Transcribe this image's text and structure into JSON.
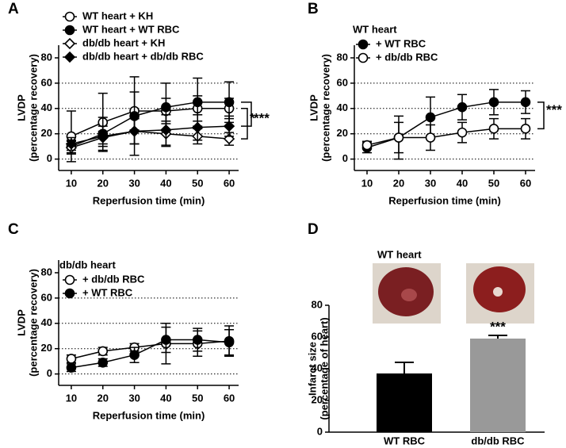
{
  "chart_data": [
    {
      "type": "line",
      "label": "A",
      "xlabel": "Reperfusion time (min)",
      "ylabel": [
        "LVDP",
        "(percentage recovery)"
      ],
      "x": [
        10,
        20,
        30,
        40,
        50,
        60
      ],
      "xlim": [
        6,
        63
      ],
      "xticks": [
        10,
        20,
        30,
        40,
        50,
        60
      ],
      "ylim": [
        -9,
        90
      ],
      "yticks": [
        0,
        20,
        40,
        60,
        80
      ],
      "grid": true,
      "series": [
        {
          "name": "WT heart  + KH",
          "marker": "circle",
          "filled": false,
          "color": "#000000",
          "values": [
            18,
            29,
            38,
            38,
            40,
            40
          ],
          "errors": [
            20,
            23,
            15,
            10,
            10,
            8
          ]
        },
        {
          "name": "WT heart + WT RBC",
          "marker": "circle",
          "filled": true,
          "color": "#000000",
          "values": [
            10,
            20,
            34,
            41,
            45,
            45
          ],
          "errors": [
            5,
            13,
            31,
            19,
            19,
            16
          ]
        },
        {
          "name": "db/db heart + KH",
          "marker": "diamond",
          "filled": false,
          "color": "#000000",
          "values": [
            9,
            17,
            22,
            20,
            18,
            16
          ],
          "errors": [
            5,
            5,
            10,
            10,
            6,
            5
          ]
        },
        {
          "name": "db/db heart + db/db RBC",
          "marker": "diamond",
          "filled": true,
          "color": "#000000",
          "values": [
            12,
            18,
            22,
            23,
            25,
            26
          ],
          "errors": [
            5,
            8,
            10,
            12,
            10,
            8
          ]
        }
      ],
      "annotations": [
        "*",
        "***"
      ]
    },
    {
      "type": "line",
      "label": "B",
      "legend_title": "WT heart",
      "xlabel": "Reperfusion time (min)",
      "ylabel": [
        "LVDP",
        "(percentage recovery)"
      ],
      "x": [
        10,
        20,
        30,
        40,
        50,
        60
      ],
      "xlim": [
        6,
        63
      ],
      "xticks": [
        10,
        20,
        30,
        40,
        50,
        60
      ],
      "ylim": [
        -9,
        90
      ],
      "yticks": [
        0,
        20,
        40,
        60,
        80
      ],
      "grid": true,
      "series": [
        {
          "name": "+ WT RBC",
          "marker": "circle",
          "filled": true,
          "color": "#000000",
          "values": [
            9,
            17,
            33,
            41,
            45,
            45
          ],
          "errors": [
            4,
            17,
            16,
            10,
            10,
            9
          ]
        },
        {
          "name": "+ db/db RBC",
          "marker": "circle",
          "filled": false,
          "color": "#000000",
          "values": [
            11,
            17,
            17,
            21,
            24,
            24
          ],
          "errors": [
            3,
            12,
            10,
            8,
            8,
            8
          ]
        }
      ],
      "annotations": [
        "***"
      ]
    },
    {
      "type": "line",
      "label": "C",
      "legend_title": "db/db heart",
      "xlabel": "Reperfusion time (min)",
      "ylabel": [
        "LVDP",
        "(percentage recovery)"
      ],
      "x": [
        10,
        20,
        30,
        40,
        50,
        60
      ],
      "xlim": [
        6,
        63
      ],
      "xticks": [
        10,
        20,
        30,
        40,
        50,
        60
      ],
      "ylim": [
        -9,
        90
      ],
      "yticks": [
        0,
        20,
        40,
        60,
        80
      ],
      "grid": true,
      "series": [
        {
          "name": "+ db/db RBC",
          "marker": "circle",
          "filled": false,
          "color": "#000000",
          "values": [
            12,
            18,
            21,
            24,
            24,
            26
          ],
          "errors": [
            3,
            3,
            3,
            16,
            10,
            12
          ]
        },
        {
          "name": "+ WT RBC",
          "marker": "circle",
          "filled": true,
          "color": "#000000",
          "values": [
            5,
            9,
            15,
            27,
            27,
            25
          ],
          "errors": [
            3,
            3,
            6,
            10,
            9,
            10
          ]
        }
      ],
      "annotations": []
    },
    {
      "type": "bar",
      "label": "D",
      "title": "WT heart",
      "ylabel": [
        "Infarct size",
        "(percentage of heart)"
      ],
      "categories": [
        "WT RBC",
        "db/db RBC"
      ],
      "values": [
        37,
        59
      ],
      "errors": [
        7,
        2
      ],
      "colors": [
        "#000000",
        "#999999"
      ],
      "ylim": [
        0,
        80
      ],
      "yticks": [
        0,
        20,
        40,
        60,
        80
      ],
      "annotations": [
        "***"
      ]
    }
  ]
}
